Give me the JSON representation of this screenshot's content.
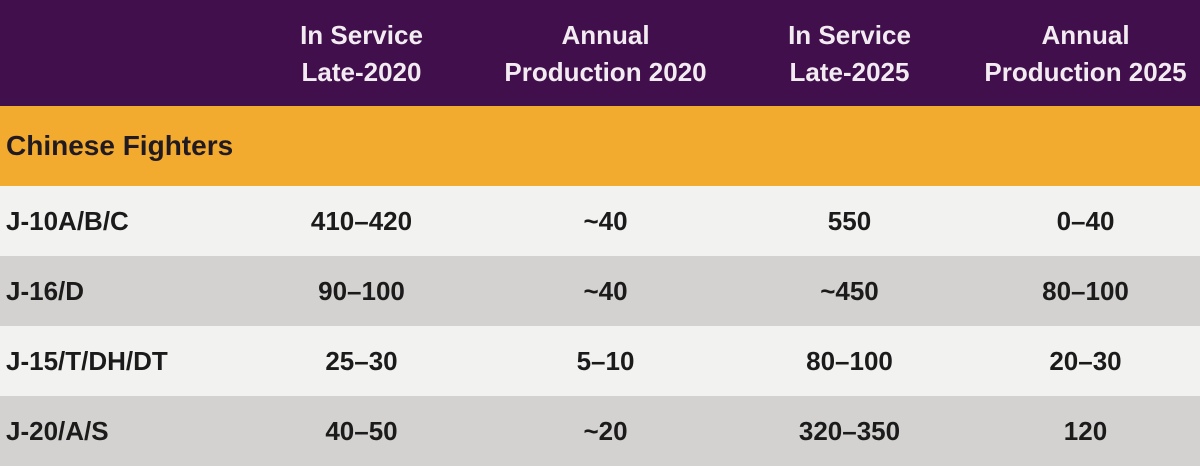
{
  "chart_data": {
    "type": "table",
    "section_header": "Chinese Fighters",
    "columns": [
      {
        "line1": "In Service",
        "line2": "Late-2020"
      },
      {
        "line1": "Annual",
        "line2": "Production 2020"
      },
      {
        "line1": "In Service",
        "line2": "Late-2025"
      },
      {
        "line1": "Annual",
        "line2": "Production 2025"
      }
    ],
    "rows": [
      {
        "label": "J-10A/B/C",
        "values": [
          "410–420",
          "~40",
          "550",
          "0–40"
        ]
      },
      {
        "label": "J-16/D",
        "values": [
          "90–100",
          "~40",
          "~450",
          "80–100"
        ]
      },
      {
        "label": "J-15/T/DH/DT",
        "values": [
          "25–30",
          "5–10",
          "80–100",
          "20–30"
        ]
      },
      {
        "label": "J-20/A/S",
        "values": [
          "40–50",
          "~20",
          "320–350",
          "120"
        ]
      }
    ]
  },
  "colors": {
    "header_bg": "#410F4B",
    "header_text": "#F2ECF2",
    "section_bg": "#F2AB2F",
    "section_text": "#211A21",
    "row_light_bg": "#F2F2F1",
    "row_dark_bg": "#D4D2D0",
    "row_text": "#1B1B1B"
  }
}
